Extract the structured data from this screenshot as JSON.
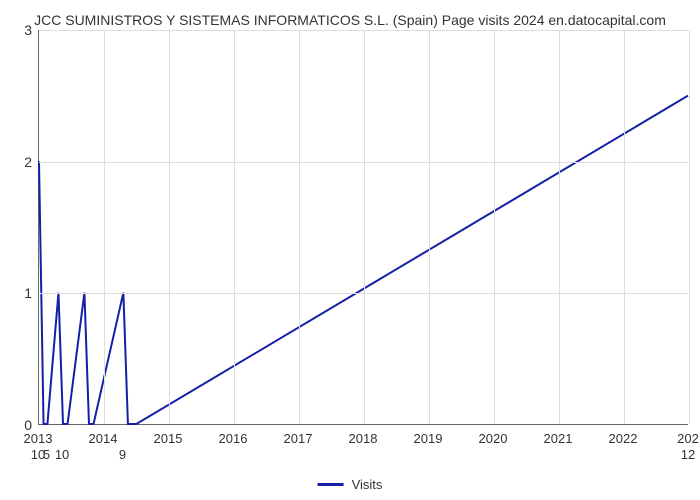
{
  "chart": {
    "type": "line",
    "title": "JCC SUMINISTROS Y SISTEMAS INFORMATICOS S.L. (Spain) Page visits 2024 en.datocapital.com",
    "title_fontsize": 14,
    "title_color": "#333333",
    "background_color": "#ffffff",
    "grid_color": "#dddddd",
    "axis_color": "#666666",
    "line_color": "#1520a6",
    "line_width": 2,
    "x_ticks": [
      "2013",
      "2014",
      "2015",
      "2016",
      "2017",
      "2018",
      "2019",
      "2020",
      "2021",
      "2022",
      "202"
    ],
    "y_ticks": [
      0,
      1,
      2,
      3
    ],
    "ylim": [
      0,
      3
    ],
    "xlim": [
      2013,
      2023
    ],
    "point_label_fontsize": 13,
    "axis_label_fontsize": 13,
    "data": {
      "x": [
        2013.0,
        2013.07,
        2013.13,
        2013.3,
        2013.37,
        2013.44,
        2013.7,
        2013.77,
        2013.84,
        2014.3,
        2014.37,
        2014.44,
        2014.5,
        2023.0
      ],
      "y": [
        2.0,
        0.0,
        0.0,
        1.0,
        0.0,
        0.0,
        1.0,
        0.0,
        0.0,
        1.0,
        0.0,
        0.0,
        0.0,
        2.5
      ],
      "labels": [
        "10",
        "",
        "5",
        "",
        "10",
        "",
        "",
        "",
        "",
        "9",
        "",
        "",
        "",
        "12"
      ]
    },
    "legend": {
      "label": "Visits",
      "color": "#1520a6"
    }
  }
}
